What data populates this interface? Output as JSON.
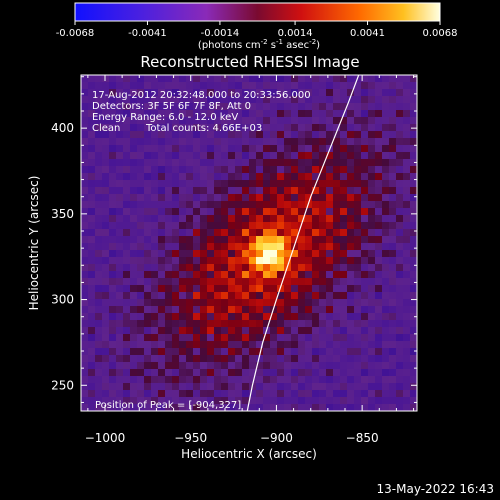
{
  "colorbar": {
    "ticks": [
      -0.0068,
      -0.0041,
      -0.0014,
      0.0014,
      0.0041,
      0.0068
    ],
    "tick_labels": [
      "-0.0068",
      "-0.0041",
      "-0.0014",
      "0.0014",
      "0.0041",
      "0.0068"
    ],
    "units_main": "(photons cm",
    "units_exp1": "-2",
    "units_mid": " s",
    "units_exp2": "-1",
    "units_end": " asec",
    "units_exp3": "-2",
    "units_close": ")",
    "range": [
      -0.0068,
      0.0068
    ]
  },
  "chart_data": {
    "type": "heatmap",
    "title": "Reconstructed RHESSI Image",
    "xlabel": "Heliocentric X (arcsec)",
    "ylabel": "Heliocentric Y (arcsec)",
    "xlim": [
      -1014,
      -818
    ],
    "ylim": [
      235,
      431
    ],
    "x_ticks": [
      -1000,
      -950,
      -900,
      -850
    ],
    "x_tick_labels": [
      "−1000",
      "−950",
      "−900",
      "−850"
    ],
    "y_ticks": [
      250,
      300,
      350,
      400
    ],
    "y_tick_labels": [
      "250",
      "300",
      "350",
      "400"
    ],
    "peak": {
      "x": -904,
      "y": 327
    },
    "limb_curve": [
      [
        -917,
        235
      ],
      [
        -914,
        250
      ],
      [
        -908,
        275
      ],
      [
        -900,
        300
      ],
      [
        -890,
        330
      ],
      [
        -880,
        360
      ],
      [
        -868,
        390
      ],
      [
        -858,
        415
      ],
      [
        -852,
        431
      ]
    ]
  },
  "annotations": {
    "time_range": "17-Aug-2012 20:32:48.000 to 20:33:56.000",
    "detectors": "Detectors: 3F 5F 6F 7F 8F, Att 0",
    "energy_range": "Energy Range: 6.0 - 12.0 keV",
    "algorithm": "Clean",
    "total_counts": "Total counts: 4.66E+03",
    "peak_position": "Position of Peak = [-904,327]"
  },
  "footer": {
    "date": "13-May-2022 16:43"
  },
  "colors": {
    "background": "#000000",
    "foreground": "#ffffff"
  }
}
